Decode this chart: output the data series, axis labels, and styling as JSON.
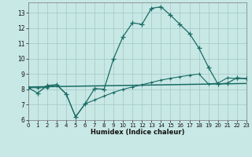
{
  "xlabel": "Humidex (Indice chaleur)",
  "bg_color": "#c8e8e5",
  "grid_color": "#a8ccca",
  "line_color": "#1a6b65",
  "xlim": [
    0,
    23
  ],
  "ylim": [
    6,
    13.7
  ],
  "xticks": [
    0,
    1,
    2,
    3,
    4,
    5,
    6,
    7,
    8,
    9,
    10,
    11,
    12,
    13,
    14,
    15,
    16,
    17,
    18,
    19,
    20,
    21,
    22,
    23
  ],
  "yticks": [
    6,
    7,
    8,
    9,
    10,
    11,
    12,
    13
  ],
  "curve1_x": [
    0,
    1,
    2,
    3,
    4,
    5,
    6,
    7,
    8,
    9,
    10,
    11,
    12,
    13,
    14,
    15,
    16,
    17,
    18,
    19,
    20,
    21,
    22,
    23
  ],
  "curve1_y": [
    8.1,
    7.75,
    8.25,
    8.3,
    7.7,
    6.2,
    7.05,
    8.05,
    8.0,
    10.0,
    11.45,
    12.35,
    12.25,
    13.3,
    13.4,
    12.85,
    12.25,
    11.65,
    10.7,
    9.45,
    8.35,
    8.4,
    8.75,
    8.7
  ],
  "curve2_x": [
    0,
    1,
    2,
    3,
    4,
    5,
    6,
    7,
    8,
    9,
    10,
    11,
    12,
    13,
    14,
    15,
    16,
    17,
    18,
    19,
    20,
    21,
    22,
    23
  ],
  "curve2_y": [
    8.1,
    8.1,
    8.1,
    8.3,
    7.7,
    6.2,
    7.05,
    7.3,
    7.55,
    7.8,
    8.0,
    8.15,
    8.3,
    8.45,
    8.6,
    8.72,
    8.82,
    8.92,
    9.0,
    8.35,
    8.4,
    8.75,
    8.7,
    8.7
  ],
  "flatline_x": [
    0,
    23
  ],
  "flatline_y": [
    8.15,
    8.38
  ],
  "ylabel_ticks": [
    "6",
    "7",
    "8",
    "9",
    "10",
    "11",
    "12",
    "13"
  ]
}
